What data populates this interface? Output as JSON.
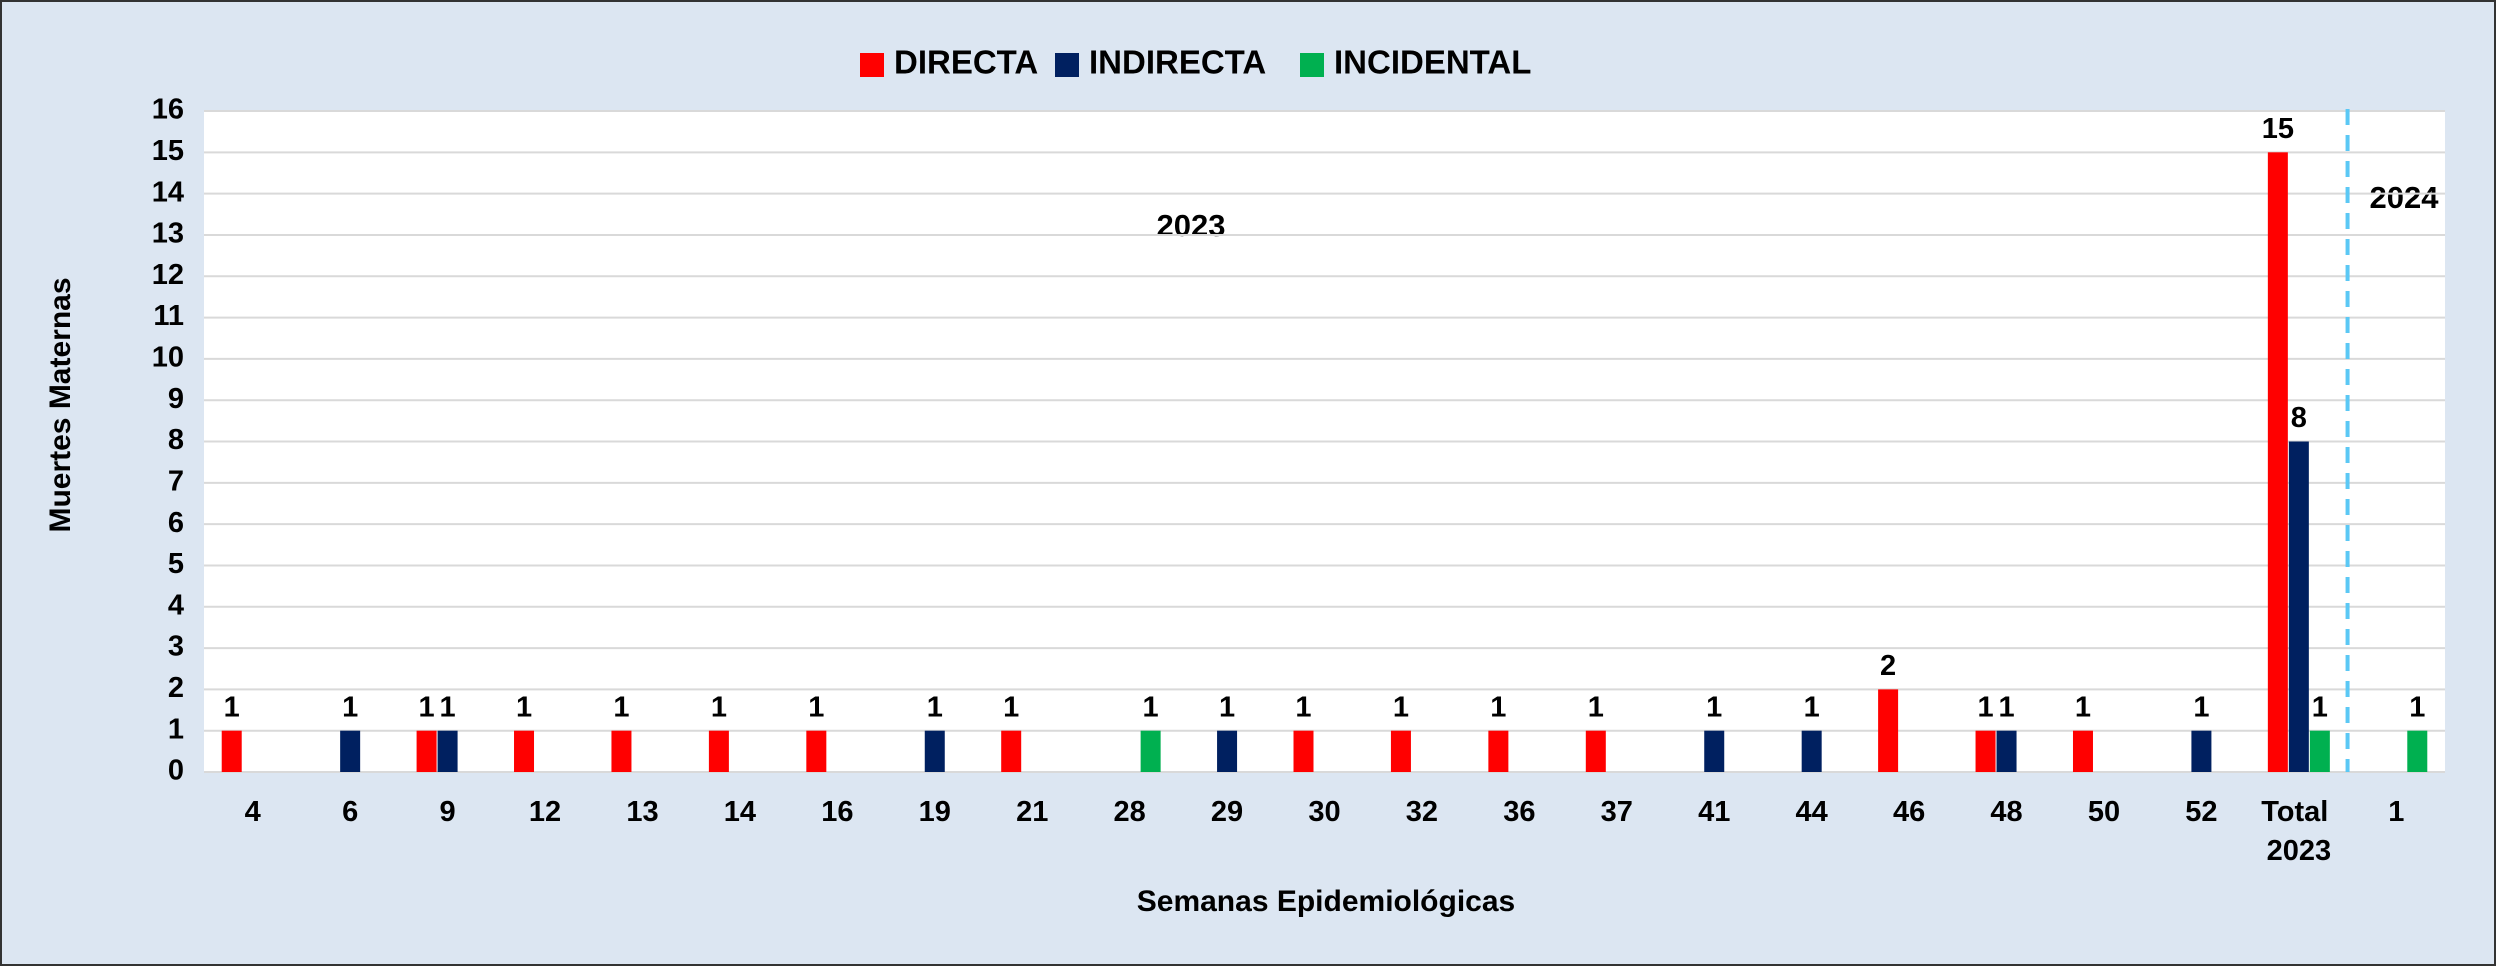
{
  "chart_data": {
    "type": "bar",
    "categories": [
      "4",
      "6",
      "9",
      "12",
      "13",
      "14",
      "16",
      "19",
      "21",
      "28",
      "29",
      "30",
      "32",
      "36",
      "37",
      "41",
      "44",
      "46",
      "48",
      "50",
      "52",
      "Total 2023",
      "1"
    ],
    "series": [
      {
        "name": "DIRECTA",
        "color": "#ff0000",
        "values": [
          1,
          null,
          1,
          1,
          1,
          1,
          1,
          null,
          1,
          null,
          null,
          1,
          1,
          1,
          1,
          null,
          null,
          2,
          1,
          1,
          null,
          15,
          null
        ]
      },
      {
        "name": "INDIRECTA",
        "color": "#002060",
        "values": [
          null,
          1,
          1,
          null,
          null,
          null,
          null,
          1,
          null,
          null,
          1,
          null,
          null,
          null,
          null,
          1,
          1,
          null,
          1,
          null,
          1,
          8,
          null
        ]
      },
      {
        "name": "INCIDENTAL",
        "color": "#00b050",
        "values": [
          null,
          null,
          null,
          null,
          null,
          null,
          null,
          null,
          null,
          1,
          null,
          null,
          null,
          null,
          null,
          null,
          null,
          null,
          null,
          null,
          null,
          1,
          1
        ]
      }
    ],
    "ylim": [
      0,
      16
    ],
    "yticks": [
      0,
      1,
      2,
      3,
      4,
      5,
      6,
      7,
      8,
      9,
      10,
      11,
      12,
      13,
      14,
      15,
      16
    ],
    "y_label": "Muertes Maternas",
    "x_label": "Semanas Epidemiológicas",
    "annotations": [
      "2023",
      "2024"
    ],
    "grid": true,
    "legend": "top"
  }
}
